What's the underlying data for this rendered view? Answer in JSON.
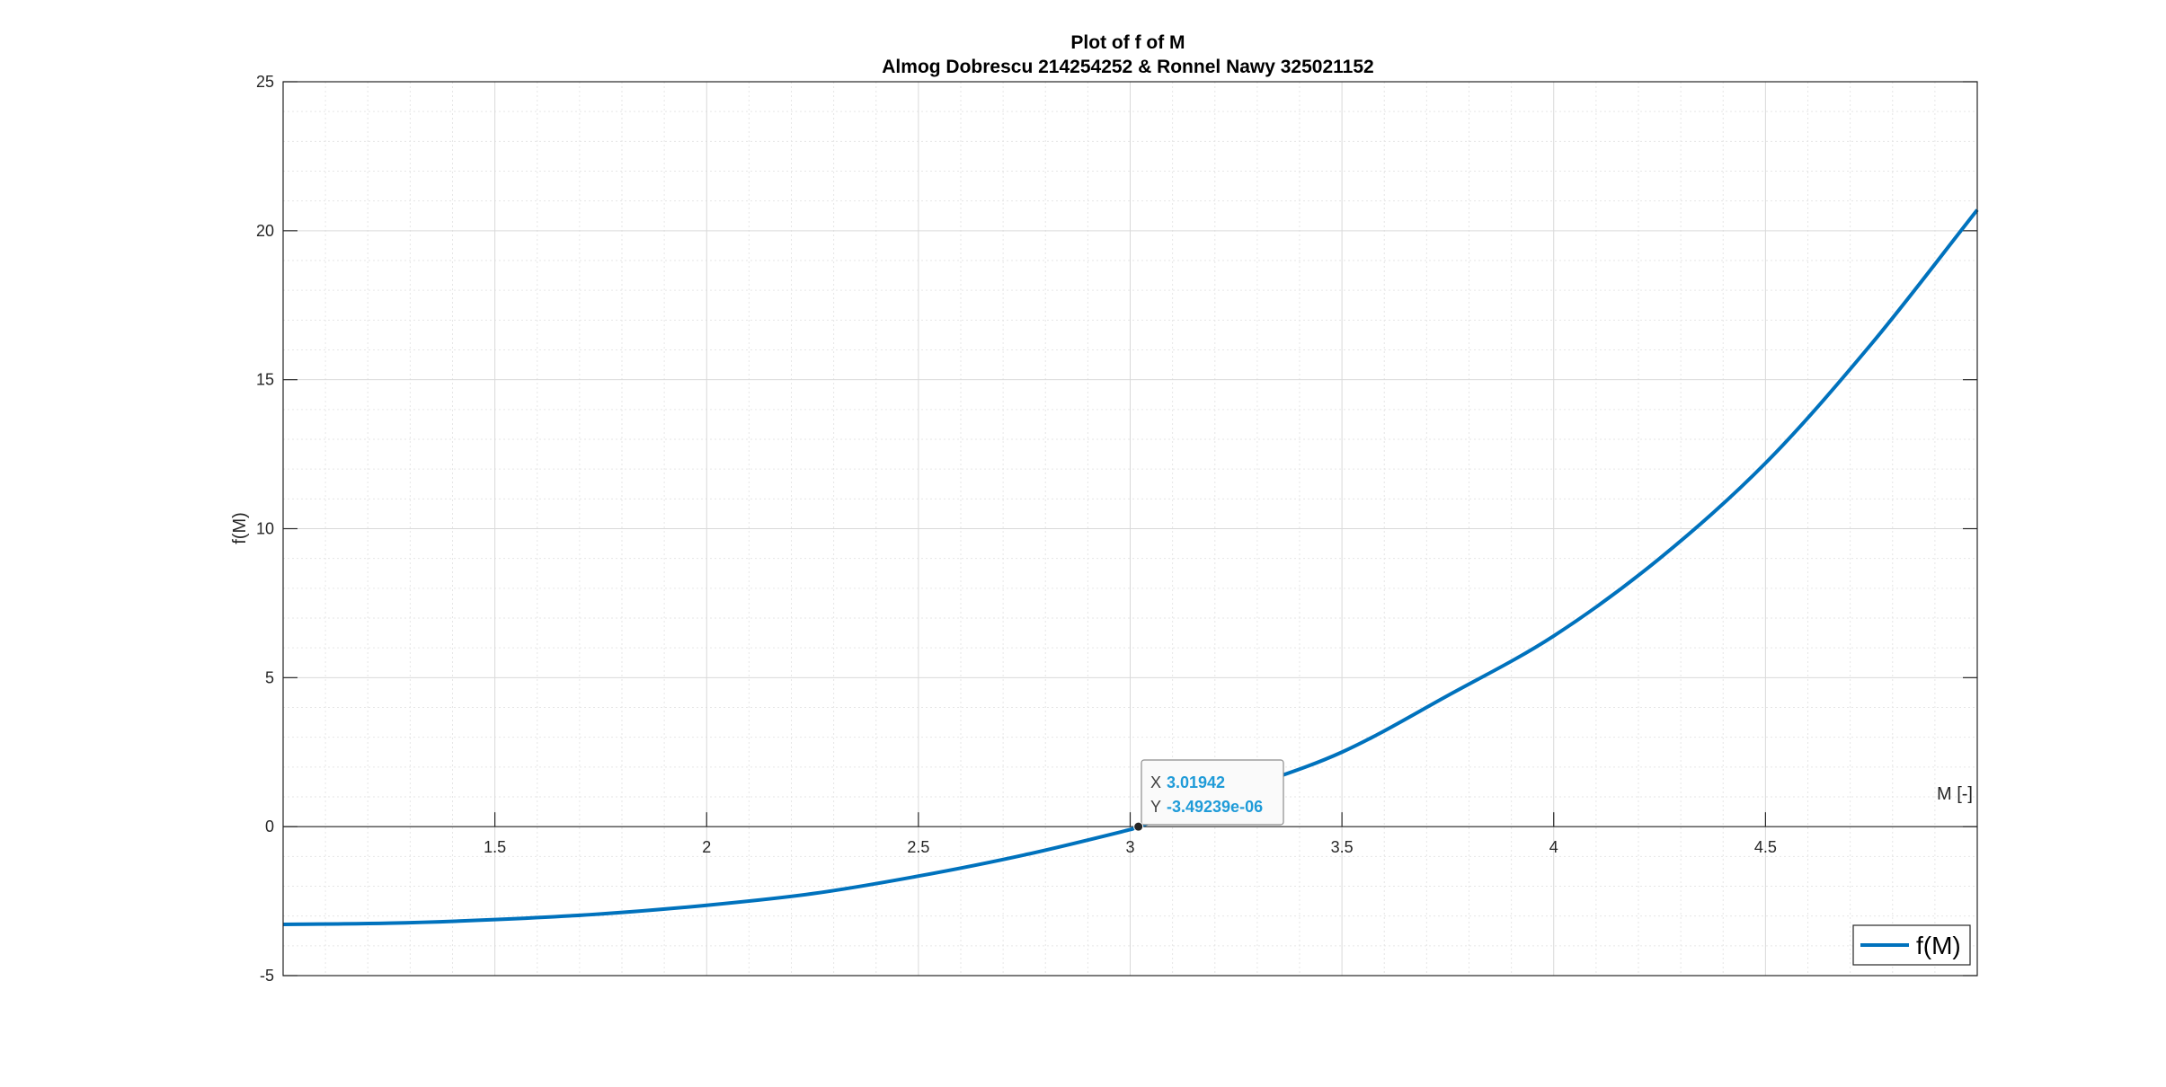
{
  "chart_data": {
    "type": "line",
    "title": "Plot of f of M",
    "subtitle": "Almog Dobrescu 214254252 & Ronnel Nawy 325021152",
    "xlabel": "M [-]",
    "ylabel": "f(M)",
    "xlim": [
      1,
      5
    ],
    "ylim": [
      -5,
      25
    ],
    "xticks": [
      1.5,
      2,
      2.5,
      3,
      3.5,
      4,
      4.5
    ],
    "xtick_labels": [
      "1.5",
      "2",
      "2.5",
      "3",
      "3.5",
      "4",
      "4.5"
    ],
    "yticks": [
      -5,
      0,
      5,
      10,
      15,
      20,
      25
    ],
    "ytick_labels": [
      "-5",
      "0",
      "5",
      "10",
      "15",
      "20",
      "25"
    ],
    "grid": true,
    "minor_grid": true,
    "legend_position": "bottom-right",
    "series": [
      {
        "name": "f(M)",
        "color": "#0072bd",
        "x": [
          1.0,
          1.25,
          1.5,
          1.75,
          2.0,
          2.25,
          2.5,
          2.75,
          3.0,
          3.02,
          3.25,
          3.5,
          3.75,
          4.0,
          4.25,
          4.5,
          4.75,
          5.0
        ],
        "y": [
          -3.28,
          -3.24,
          -3.12,
          -2.93,
          -2.64,
          -2.25,
          -1.66,
          -0.95,
          -0.1,
          0,
          1.18,
          2.5,
          4.4,
          6.4,
          9.0,
          12.2,
          16.2,
          20.7
        ]
      }
    ],
    "datatip": {
      "x_key": "X",
      "x_value": "3.01942",
      "y_key": "Y",
      "y_value": "-3.49239e-06",
      "x": 3.01942,
      "y": -3.49239e-06
    }
  }
}
